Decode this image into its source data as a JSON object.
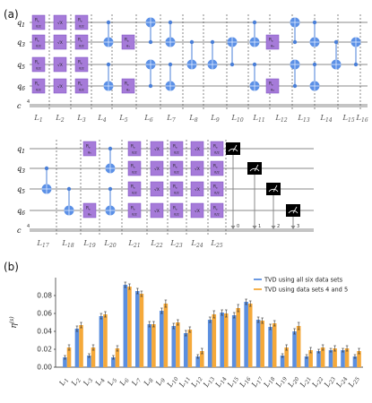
{
  "figure": {
    "panel_a_label": "(a)",
    "panel_b_label": "(b)"
  },
  "circuit": {
    "qubits": [
      {
        "base": "q",
        "sub": "1"
      },
      {
        "base": "q",
        "sub": "3"
      },
      {
        "base": "q",
        "sub": "5"
      },
      {
        "base": "q",
        "sub": "6"
      }
    ],
    "classical_label": "c",
    "classical_count": "4",
    "gate_labels": {
      "rz_top": "R",
      "rz_sub": "z",
      "pi2": "π/2",
      "sx": "√X",
      "rz_theta": [
        "θ₁",
        "θ₂",
        "θ₃",
        "θ₄",
        "θ₅",
        "θ₆"
      ]
    },
    "layer_names_row1": [
      "L1",
      "L2",
      "L3",
      "L4",
      "L5",
      "L6",
      "L7",
      "L8",
      "L9",
      "L10",
      "L11",
      "L12",
      "L13",
      "L14",
      "L15",
      "L16"
    ],
    "layer_names_row2": [
      "L17",
      "L18",
      "L19",
      "L20",
      "L21",
      "L22",
      "L23",
      "L24",
      "L25"
    ],
    "measure_bits": [
      "0",
      "1",
      "2",
      "3"
    ]
  },
  "chart_data": {
    "type": "bar",
    "ylabel": "η(s)",
    "ylabel_base": "η",
    "ylabel_sup": "(s)",
    "ylim": [
      0.0,
      0.1
    ],
    "yticks": [
      "0.00",
      "0.02",
      "0.04",
      "0.06",
      "0.08"
    ],
    "yticks_values": [
      0.0,
      0.02,
      0.04,
      0.06,
      0.08
    ],
    "categories": [
      "L1",
      "L2",
      "L3",
      "L4",
      "L5",
      "L6",
      "L7",
      "L8",
      "L9",
      "L10",
      "L11",
      "L12",
      "L13",
      "L14",
      "L15",
      "L16",
      "L17",
      "L18",
      "L19",
      "L20",
      "L21",
      "L22",
      "L23",
      "L24",
      "L25"
    ],
    "category_base": "L",
    "category_subs": [
      "1",
      "2",
      "3",
      "4",
      "5",
      "6",
      "7",
      "8",
      "9",
      "10",
      "11",
      "12",
      "13",
      "14",
      "15",
      "16",
      "17",
      "18",
      "19",
      "20",
      "21",
      "22",
      "23",
      "24",
      "25"
    ],
    "legend_position": "top-right",
    "series": [
      {
        "name": "TVD using all six data sets",
        "color": "#5b8fe0",
        "values": [
          0.011,
          0.043,
          0.013,
          0.057,
          0.011,
          0.092,
          0.085,
          0.048,
          0.063,
          0.046,
          0.038,
          0.012,
          0.053,
          0.061,
          0.058,
          0.073,
          0.053,
          0.045,
          0.013,
          0.04,
          0.012,
          0.018,
          0.019,
          0.019,
          0.012
        ],
        "errors": [
          0.002,
          0.003,
          0.002,
          0.003,
          0.002,
          0.003,
          0.003,
          0.003,
          0.003,
          0.003,
          0.003,
          0.002,
          0.003,
          0.003,
          0.003,
          0.003,
          0.003,
          0.003,
          0.002,
          0.003,
          0.002,
          0.002,
          0.002,
          0.002,
          0.002
        ]
      },
      {
        "name": "TVD using data sets 4 and 5",
        "color": "#f5a93a",
        "values": [
          0.022,
          0.047,
          0.022,
          0.059,
          0.021,
          0.09,
          0.082,
          0.048,
          0.071,
          0.05,
          0.042,
          0.018,
          0.059,
          0.06,
          0.066,
          0.071,
          0.052,
          0.049,
          0.022,
          0.046,
          0.019,
          0.022,
          0.021,
          0.021,
          0.018
        ],
        "errors": [
          0.003,
          0.003,
          0.003,
          0.003,
          0.003,
          0.003,
          0.003,
          0.003,
          0.004,
          0.003,
          0.003,
          0.003,
          0.004,
          0.004,
          0.004,
          0.003,
          0.003,
          0.003,
          0.003,
          0.004,
          0.003,
          0.003,
          0.003,
          0.003,
          0.003
        ]
      }
    ]
  }
}
